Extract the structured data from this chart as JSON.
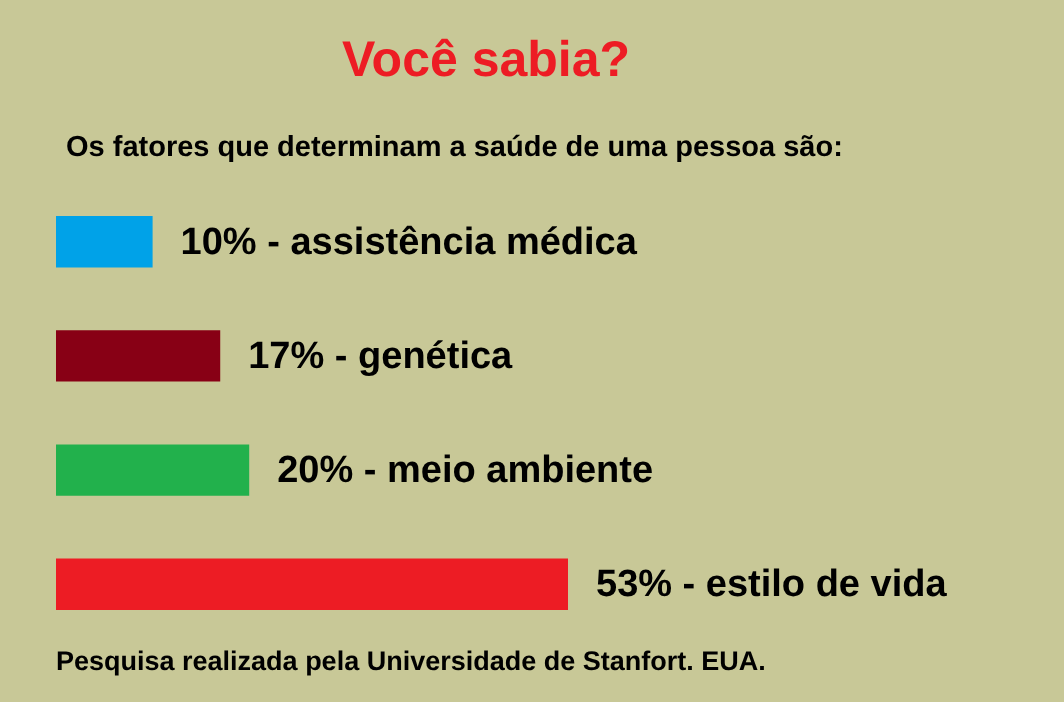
{
  "chart_data": {
    "type": "bar",
    "orientation": "horizontal",
    "title": "Você sabia?",
    "subtitle": "Os fatores que determinam a saúde de uma pessoa são:",
    "categories": [
      null,
      null,
      null,
      null
    ],
    "values": [
      10,
      17,
      20,
      53
    ],
    "colors": [
      "#00a2e8",
      "#880015",
      "#22b14c",
      "#ed1c24"
    ],
    "value_labels": [
      "10% - assistência médica",
      "17% - genética",
      "20% - meio ambiente",
      "53% - estilo de vida"
    ],
    "annotations": [
      "Pesquisa realizada pela Universidade de Stanfort. EUA."
    ]
  }
}
